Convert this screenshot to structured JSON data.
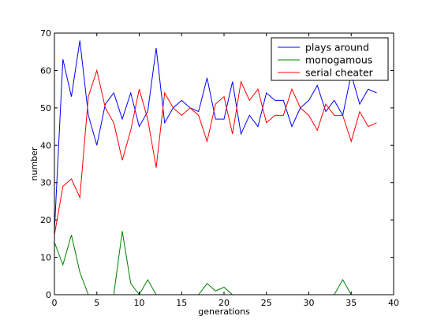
{
  "chart_data": {
    "type": "line",
    "title": "",
    "xlabel": "generations",
    "ylabel": "number",
    "xlim": [
      0,
      40
    ],
    "ylim": [
      0,
      70
    ],
    "xticks": [
      0,
      5,
      10,
      15,
      20,
      25,
      30,
      35,
      40
    ],
    "yticks": [
      0,
      10,
      20,
      30,
      40,
      50,
      60,
      70
    ],
    "grid": false,
    "legend_position": "top-right",
    "x": [
      0,
      1,
      2,
      3,
      4,
      5,
      6,
      7,
      8,
      9,
      10,
      11,
      12,
      13,
      14,
      15,
      16,
      17,
      18,
      19,
      20,
      21,
      22,
      23,
      24,
      25,
      26,
      27,
      28,
      29,
      30,
      31,
      32,
      33,
      34,
      35,
      36,
      37,
      38
    ],
    "series": [
      {
        "name": "plays around",
        "color": "#0000ff",
        "values": [
          17,
          63,
          53,
          68,
          48,
          40,
          51,
          54,
          47,
          54,
          45,
          49,
          66,
          46,
          50,
          52,
          50,
          49,
          58,
          47,
          47,
          57,
          43,
          48,
          45,
          54,
          52,
          52,
          45,
          50,
          52,
          56,
          49,
          52,
          48,
          59,
          51,
          55,
          54
        ]
      },
      {
        "name": "monogamous",
        "color": "#008000",
        "values": [
          14,
          8,
          16,
          6,
          0,
          0,
          0,
          0,
          17,
          3,
          0,
          4,
          0,
          0,
          0,
          0,
          0,
          0,
          3,
          1,
          2,
          0,
          0,
          0,
          0,
          0,
          0,
          0,
          0,
          0,
          0,
          0,
          0,
          0,
          4,
          0,
          0,
          0,
          0
        ]
      },
      {
        "name": "serial cheater",
        "color": "#ff0000",
        "values": [
          16,
          29,
          31,
          26,
          53,
          60,
          50,
          46,
          36,
          44,
          55,
          47,
          34,
          54,
          50,
          48,
          50,
          48,
          41,
          51,
          53,
          43,
          57,
          52,
          55,
          46,
          48,
          48,
          55,
          50,
          48,
          44,
          51,
          48,
          48,
          41,
          49,
          45,
          46
        ]
      }
    ]
  }
}
